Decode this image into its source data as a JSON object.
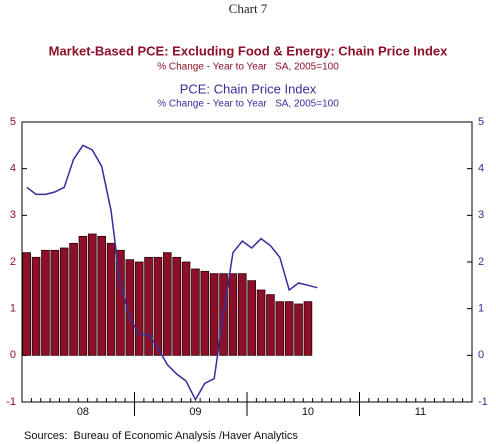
{
  "chart_data": {
    "type": "bar_line",
    "title": "Chart 7",
    "series_titles": [
      {
        "title": "Market-Based PCE: Excluding Food & Energy: Chain Price Index",
        "subtitle": "% Change - Year to Year   SA, 2005=100"
      },
      {
        "title": "PCE: Chain Price Index",
        "subtitle": "% Change - Year to Year   SA, 2005=100"
      }
    ],
    "source": "Sources:  Bureau of Economic Analysis /Haver Analytics",
    "categories": [
      null,
      null,
      null,
      null,
      null,
      null,
      "08",
      null,
      null,
      null,
      null,
      null,
      null,
      null,
      null,
      null,
      null,
      null,
      "09",
      null,
      null,
      null,
      null,
      null,
      null,
      null,
      null,
      null,
      null,
      null,
      "10",
      null,
      null,
      null,
      null,
      null,
      null,
      null,
      null,
      null,
      null,
      null,
      "11",
      null,
      null,
      null,
      null,
      null
    ],
    "series": [
      {
        "name": "Market-Based PCE: Excluding Food & Energy: Chain Price Index",
        "type": "bar",
        "color": "#8c1028",
        "axis": "y",
        "values": [
          2.2,
          2.1,
          2.25,
          2.25,
          2.3,
          2.4,
          2.55,
          2.6,
          2.55,
          2.4,
          2.25,
          2.05,
          2.0,
          2.1,
          2.1,
          2.2,
          2.1,
          2.0,
          1.85,
          1.8,
          1.75,
          1.75,
          1.75,
          1.75,
          1.6,
          1.4,
          1.3,
          1.15,
          1.15,
          1.1,
          1.15,
          null,
          null,
          null,
          null,
          null,
          null,
          null,
          null,
          null,
          null,
          null,
          null,
          null,
          null,
          null,
          null,
          null
        ]
      },
      {
        "name": "PCE: Chain Price Index",
        "type": "line",
        "color": "#3a2c9c",
        "axis": "y2",
        "values": [
          3.6,
          3.45,
          3.45,
          3.5,
          3.6,
          4.2,
          4.5,
          4.4,
          4.05,
          3.1,
          1.5,
          0.8,
          0.45,
          0.45,
          0.15,
          -0.2,
          -0.4,
          -0.55,
          -0.95,
          -0.6,
          -0.5,
          0.9,
          2.2,
          2.45,
          2.3,
          2.5,
          2.35,
          2.1,
          1.4,
          1.55,
          1.5,
          1.45,
          null,
          null,
          null,
          null,
          null,
          null,
          null,
          null,
          null,
          null,
          null,
          null,
          null,
          null,
          null,
          null
        ]
      }
    ],
    "ylim": [
      -1,
      5
    ],
    "yticks": [
      -1,
      0,
      1,
      2,
      3,
      4,
      5
    ],
    "y2lim": [
      -1,
      5
    ],
    "y2ticks": [
      -1,
      0,
      1,
      2,
      3,
      4,
      5
    ],
    "left_axis_color": "#8c1028",
    "right_axis_color": "#3a2c9c"
  }
}
